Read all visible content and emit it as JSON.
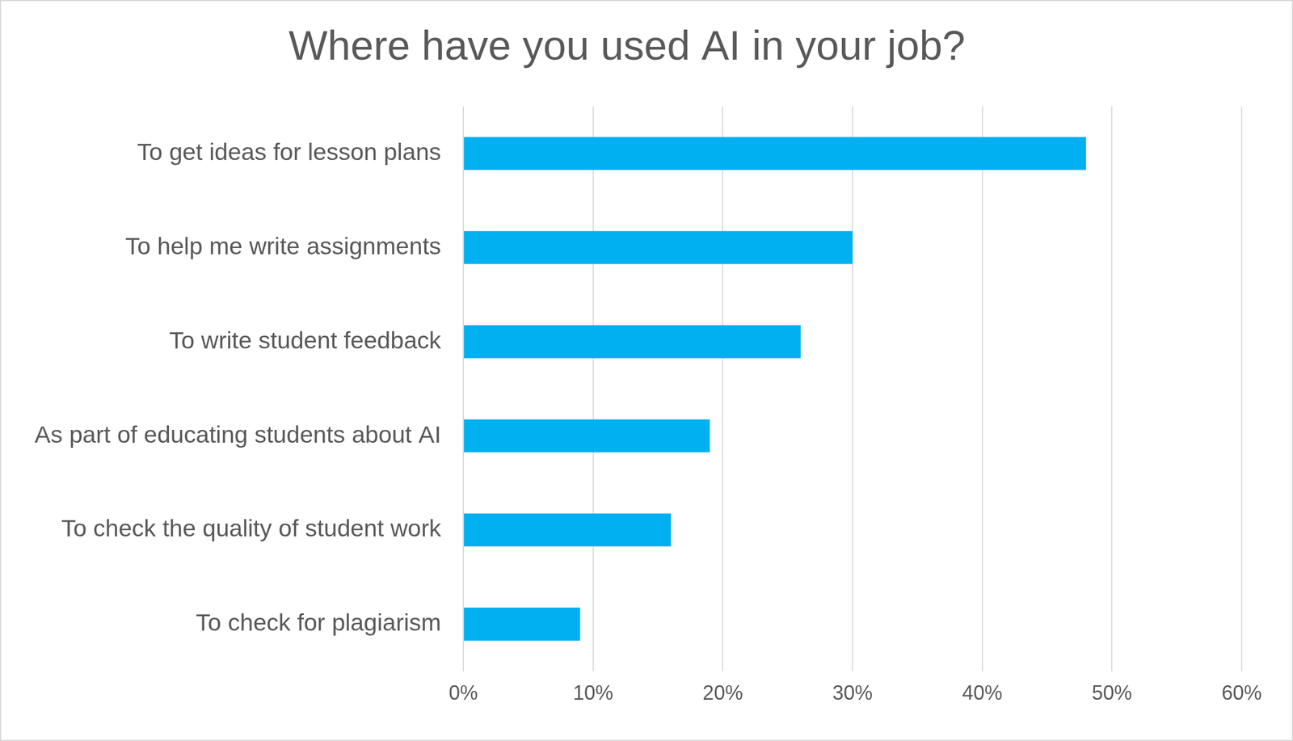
{
  "chart_data": {
    "type": "bar",
    "orientation": "horizontal",
    "title": "Where have you used AI in your job?",
    "categories": [
      "To get ideas for lesson plans",
      "To help me write assignments",
      "To write student feedback",
      "As part of educating students about AI",
      "To check the quality of student work",
      "To check for plagiarism"
    ],
    "values": [
      48,
      30,
      26,
      19,
      16,
      9
    ],
    "color": "#00b0f0",
    "xlim": [
      0,
      60
    ],
    "xticks": [
      {
        "value": 0,
        "label": "0%"
      },
      {
        "value": 10,
        "label": "10%"
      },
      {
        "value": 20,
        "label": "20%"
      },
      {
        "value": 30,
        "label": "30%"
      },
      {
        "value": 40,
        "label": "40%"
      },
      {
        "value": 50,
        "label": "50%"
      },
      {
        "value": 60,
        "label": "60%"
      }
    ],
    "grid": true
  }
}
